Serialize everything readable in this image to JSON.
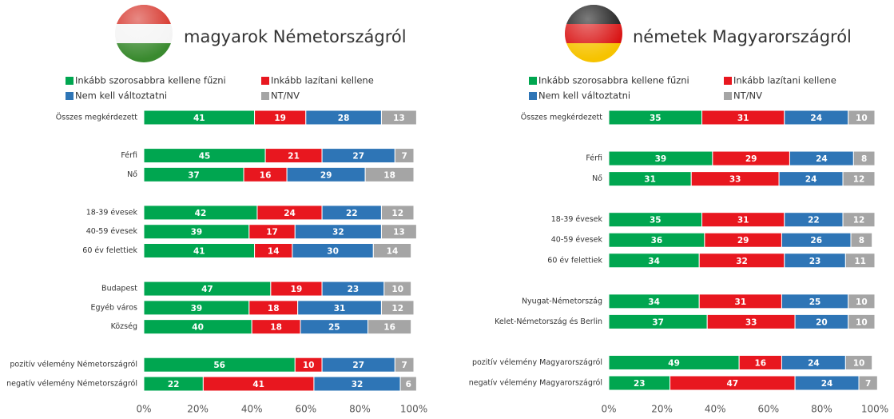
{
  "chart_data": [
    {
      "type": "stacked-bar-horizontal",
      "title": "magyarok Németországról",
      "categories": [
        "Összes megkérdezett",
        null,
        "Férfi",
        "Nő",
        null,
        "18-39 évesek",
        "40-59 évesek",
        "60 év felettiek",
        null,
        "Budapest",
        "Egyéb város",
        "Község",
        null,
        "pozitív vélemény Németországról",
        "negatív vélemény Németországról"
      ],
      "series": [
        {
          "name": "Inkább szorosabbra kellene fűzni",
          "color": "#00a650",
          "values": [
            41,
            null,
            45,
            37,
            null,
            42,
            39,
            41,
            null,
            47,
            39,
            40,
            null,
            56,
            22
          ]
        },
        {
          "name": "Inkább lazítani kellene",
          "color": "#e8171f",
          "values": [
            19,
            null,
            21,
            16,
            null,
            24,
            17,
            14,
            null,
            19,
            18,
            18,
            null,
            10,
            41
          ]
        },
        {
          "name": "Nem kell változtatni",
          "color": "#2e75b6",
          "values": [
            28,
            null,
            27,
            29,
            null,
            22,
            32,
            30,
            null,
            23,
            31,
            25,
            null,
            27,
            32
          ]
        },
        {
          "name": "NT/NV",
          "color": "#a5a5a5",
          "values": [
            13,
            null,
            7,
            18,
            null,
            12,
            13,
            14,
            null,
            10,
            12,
            16,
            null,
            7,
            6
          ]
        }
      ],
      "xlim": [
        0,
        100
      ],
      "xticks": [
        {
          "value": 0,
          "label": "0%"
        },
        {
          "value": 20,
          "label": "20%"
        },
        {
          "value": 40,
          "label": "40%"
        },
        {
          "value": 60,
          "label": "60%"
        },
        {
          "value": 80,
          "label": "80%"
        },
        {
          "value": 100,
          "label": "100%"
        }
      ]
    },
    {
      "type": "stacked-bar-horizontal",
      "title": "németek Magyarországról",
      "categories": [
        "Összes megkérdezett",
        null,
        "Férfi",
        "Nő",
        null,
        "18-39 évesek",
        "40-59 évesek",
        "60 év felettiek",
        null,
        "Nyugat-Németország",
        "Kelet-Németország és Berlin",
        null,
        "pozitív vélemény Magyarországról",
        "negatív vélemény Magyarországról"
      ],
      "series": [
        {
          "name": "Inkább szorosabbra kellene fűzni",
          "color": "#00a650",
          "values": [
            35,
            null,
            39,
            31,
            null,
            35,
            36,
            34,
            null,
            34,
            37,
            null,
            49,
            23
          ]
        },
        {
          "name": "Inkább lazítani kellene",
          "color": "#e8171f",
          "values": [
            31,
            null,
            29,
            33,
            null,
            31,
            29,
            32,
            null,
            31,
            33,
            null,
            16,
            47
          ]
        },
        {
          "name": "Nem kell változtatni",
          "color": "#2e75b6",
          "values": [
            24,
            null,
            24,
            24,
            null,
            22,
            26,
            23,
            null,
            25,
            20,
            null,
            24,
            24
          ]
        },
        {
          "name": "NT/NV",
          "color": "#a5a5a5",
          "values": [
            10,
            null,
            8,
            12,
            null,
            12,
            8,
            11,
            null,
            10,
            10,
            null,
            10,
            7
          ]
        }
      ],
      "xlim": [
        0,
        100
      ],
      "xticks": [
        {
          "value": 0,
          "label": "0%"
        },
        {
          "value": 20,
          "label": "20%"
        },
        {
          "value": 40,
          "label": "40%"
        },
        {
          "value": 60,
          "label": "60%"
        },
        {
          "value": 80,
          "label": "80%"
        },
        {
          "value": 100,
          "label": "100%"
        }
      ]
    }
  ]
}
